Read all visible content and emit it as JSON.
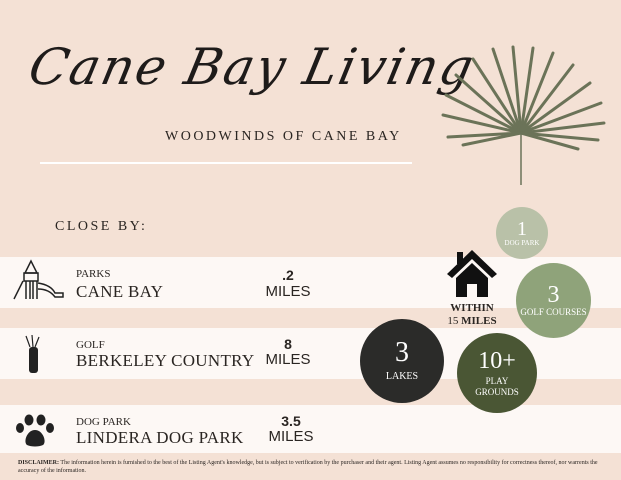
{
  "header": {
    "title": "Cane Bay Living",
    "subtitle": "WOODWINDS OF CANE BAY"
  },
  "section_label": "CLOSE BY:",
  "places": [
    {
      "category": "PARKS",
      "name": "CANE BAY",
      "distance": ".2",
      "unit": "MILES",
      "icon": "playground-icon"
    },
    {
      "category": "GOLF",
      "name": "BERKELEY COUNTRY",
      "distance": "8",
      "unit": "MILES",
      "icon": "golf-bag-icon"
    },
    {
      "category": "DOG PARK",
      "name": "LINDERA DOG PARK",
      "distance": "3.5",
      "unit": "MILES",
      "icon": "paw-icon"
    }
  ],
  "within": {
    "line1": "WITHIN",
    "line2_num": "15",
    "line2_unit": "MILES",
    "icon": "house-icon"
  },
  "stats": [
    {
      "value": "1",
      "label": "DOG PARK",
      "color": "#b9c1a8"
    },
    {
      "value": "3",
      "label": "GOLF COURSES",
      "color": "#8fa37a"
    },
    {
      "value": "3",
      "label": "LAKES",
      "color": "#2b2b29"
    },
    {
      "value": "10+",
      "label": "PLAY GROUNDS",
      "label_line1": "PLAY",
      "label_line2": "GROUNDS",
      "color": "#4a5634"
    }
  ],
  "disclaimer": {
    "label": "DISCLAIMER:",
    "text": " The information herein is furnished to the best of the Listing Agent's knowledge, but is subject to verification by the purchaser and their agent. Listing Agent assumes no responsibility for correctness thereof, nor warrents the accuracy of the information."
  },
  "colors": {
    "background": "#f4e1d5",
    "stripe": "#fdf8f5",
    "palm": "#6b7358"
  }
}
